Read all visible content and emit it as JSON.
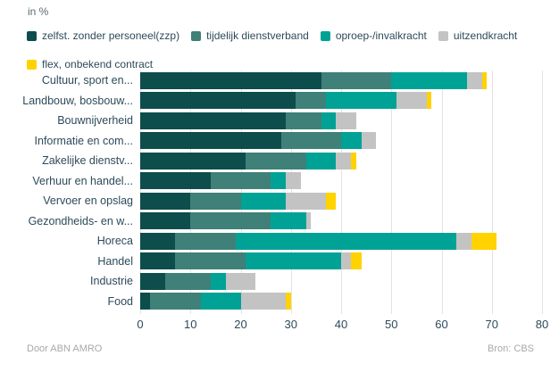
{
  "title": "in %",
  "footer": {
    "left": "Door ABN AMRO",
    "right": "Bron: CBS"
  },
  "colors": {
    "zzp": "#0d4d4c",
    "tijdelijk": "#3f8078",
    "oproep": "#00a296",
    "uitzend": "#c3c3c3",
    "flex": "#ffd200",
    "grid": "#e3e3e3",
    "text": "#2d4a5a",
    "muted": "#a9a9a9"
  },
  "chart_data": {
    "type": "bar",
    "orientation": "horizontal",
    "stacked": true,
    "title": "in %",
    "xlabel": "",
    "ylabel": "",
    "xlim": [
      0,
      80
    ],
    "xticks": [
      0,
      10,
      20,
      30,
      40,
      50,
      60,
      70,
      80
    ],
    "grid": "vertical",
    "legend_position": "top",
    "categories": [
      "Cultuur, sport en...",
      "Landbouw, bosbouw...",
      "Bouwnijverheid",
      "Informatie en com...",
      "Zakelijke dienstv...",
      "Verhuur en handel...",
      "Vervoer en opslag",
      "Gezondheids- en w...",
      "Horeca",
      "Handel",
      "Industrie",
      "Food"
    ],
    "series": [
      {
        "name": "zelfst. zonder personeel(zzp)",
        "color": "#0d4d4c",
        "values": [
          36,
          31,
          29,
          28,
          21,
          14,
          10,
          10,
          7,
          7,
          5,
          2
        ]
      },
      {
        "name": "tijdelijk dienstverband",
        "color": "#3f8078",
        "values": [
          14,
          6,
          7,
          12,
          12,
          12,
          10,
          16,
          12,
          14,
          9,
          10
        ]
      },
      {
        "name": "oproep-/invalkracht",
        "color": "#00a296",
        "values": [
          15,
          14,
          3,
          4,
          6,
          3,
          9,
          7,
          44,
          19,
          3,
          8
        ]
      },
      {
        "name": "uitzendkracht",
        "color": "#c3c3c3",
        "values": [
          3,
          6,
          4,
          3,
          3,
          3,
          8,
          1,
          3,
          2,
          6,
          9
        ]
      },
      {
        "name": "flex, onbekend contract",
        "color": "#ffd200",
        "values": [
          1,
          1,
          0,
          0,
          1,
          0,
          2,
          0,
          5,
          2,
          0,
          1
        ]
      }
    ],
    "totals": [
      69,
      58,
      43,
      47,
      43,
      32,
      39,
      34,
      71,
      44,
      23,
      30
    ]
  }
}
